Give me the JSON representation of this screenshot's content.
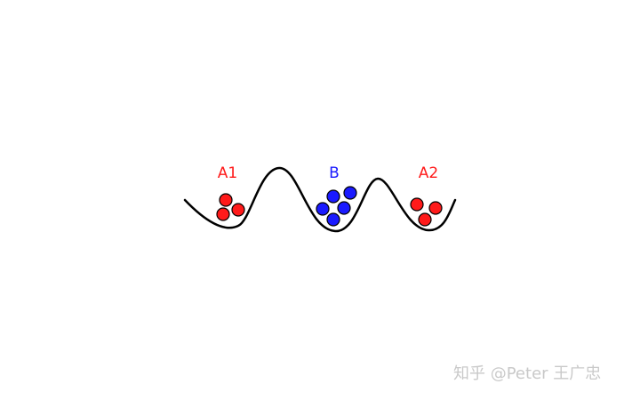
{
  "labels": {
    "left_well": "A1",
    "middle_well": "B",
    "right_well": "A2"
  },
  "colors": {
    "a_group": "#ff1a1a",
    "b_group": "#1a1aff",
    "curve": "#000000",
    "watermark": "#c9c9c9"
  },
  "particle_counts": {
    "left_well": 3,
    "middle_well": 5,
    "right_well": 3
  },
  "watermark": "知乎 @Peter 王广忠"
}
